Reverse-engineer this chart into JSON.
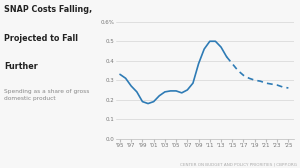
{
  "title_line1": "SNAP Costs Falling,",
  "title_line2": "Projected to Fall",
  "title_line3": "Further",
  "subtitle": "Spending as a share of gross\ndomestic product",
  "footer": "CENTER ON BUDGET AND POLICY PRIORITIES | CBPP.ORG",
  "bg_color": "#f7f7f7",
  "line_color": "#2e7bb5",
  "x_ticks": [
    "'95",
    "'97",
    "'99",
    "'01",
    "'03",
    "'05",
    "'07",
    "'09",
    "'11",
    "'13",
    "'15",
    "'17",
    "'19",
    "'21",
    "'23",
    "'25"
  ],
  "y_ticks": [
    0.0,
    0.1,
    0.2,
    0.3,
    0.4,
    0.5,
    0.6
  ],
  "solid_x": [
    1995,
    1996,
    1997,
    1998,
    1999,
    2000,
    2001,
    2002,
    2003,
    2004,
    2005,
    2006,
    2007,
    2008,
    2009,
    2010,
    2011,
    2012,
    2013,
    2014
  ],
  "solid_y": [
    0.33,
    0.31,
    0.27,
    0.24,
    0.19,
    0.18,
    0.19,
    0.22,
    0.24,
    0.245,
    0.245,
    0.235,
    0.25,
    0.285,
    0.385,
    0.46,
    0.5,
    0.5,
    0.47,
    0.42
  ],
  "dashed_x": [
    2014,
    2015,
    2016,
    2017,
    2018,
    2019,
    2020,
    2021,
    2022,
    2023,
    2024,
    2025
  ],
  "dashed_y": [
    0.42,
    0.385,
    0.35,
    0.325,
    0.31,
    0.3,
    0.295,
    0.285,
    0.28,
    0.275,
    0.265,
    0.26
  ]
}
